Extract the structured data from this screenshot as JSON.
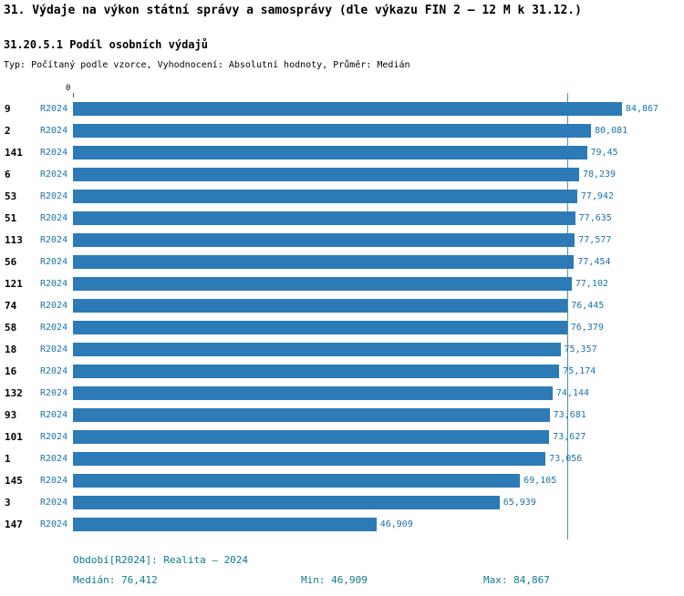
{
  "title": "31. Výdaje na výkon státní správy a samosprávy (dle výkazu FIN 2 – 12 M k 31.12.)",
  "subtitle": "31.20.5.1 Podíl osobních výdajů",
  "meta": "Typ: Počítaný podle vzorce, Vyhodnocení: Absolutní hodnoty, Průměr: Medián",
  "axis": {
    "zero_label": "0"
  },
  "chart_data": {
    "type": "bar",
    "orientation": "horizontal",
    "series_label": "R2024",
    "categories": [
      "9",
      "2",
      "141",
      "6",
      "53",
      "51",
      "113",
      "56",
      "121",
      "74",
      "58",
      "18",
      "16",
      "132",
      "93",
      "101",
      "1",
      "145",
      "3",
      "147"
    ],
    "values": [
      84.867,
      80.081,
      79.45,
      78.239,
      77.942,
      77.635,
      77.577,
      77.454,
      77.102,
      76.445,
      76.379,
      75.357,
      75.174,
      74.144,
      73.681,
      73.627,
      73.056,
      69.105,
      65.939,
      46.909
    ],
    "value_labels": [
      "84,867",
      "80,081",
      "79,45",
      "78,239",
      "77,942",
      "77,635",
      "77,577",
      "77,454",
      "77,102",
      "76,445",
      "76,379",
      "75,357",
      "75,174",
      "74,144",
      "73,681",
      "73,627",
      "73,056",
      "69,105",
      "65,939",
      "46,909"
    ],
    "median": 76.412,
    "xlim": [
      0,
      86
    ],
    "grid": false,
    "legend": "none",
    "bar_color": "#2c7bb6",
    "label_color": "#1c74a8",
    "median_line_color": "#4a93a8"
  },
  "footer": {
    "period": "Období[R2024]: Realita – 2024",
    "median": "Medián: 76,412",
    "min": "Min: 46,909",
    "max": "Max: 84,867"
  }
}
